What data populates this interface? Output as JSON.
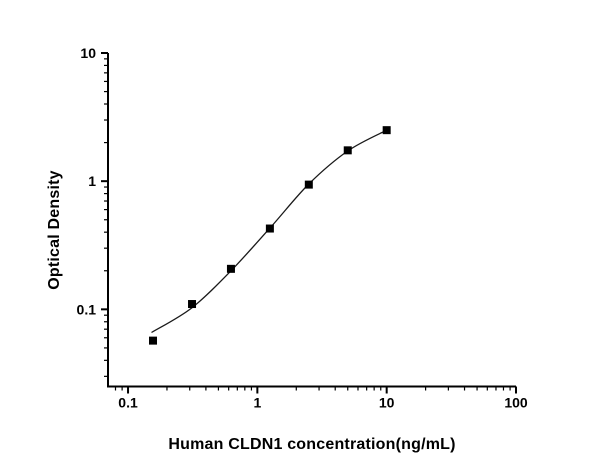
{
  "figure": {
    "background_color": "#ffffff"
  },
  "chart_data": {
    "type": "scatter",
    "title": "",
    "xlabel": "Human CLDN1 concentration(ng/mL)",
    "ylabel": "Optical Density",
    "x_scale": "log",
    "y_scale": "log",
    "xlim": [
      0.07,
      100
    ],
    "ylim": [
      0.025,
      10
    ],
    "x_major_ticks": [
      0.1,
      1,
      10,
      100
    ],
    "x_tick_labels": [
      "0.1",
      "1",
      "10",
      "100"
    ],
    "y_major_ticks": [
      0.1,
      1,
      10
    ],
    "y_tick_labels": [
      "0.1",
      "1",
      "10"
    ],
    "grid": false,
    "legend": false,
    "series": [
      {
        "name": "standard-points",
        "kind": "scatter",
        "marker": "filled-square",
        "color": "#000000",
        "x": [
          0.156,
          0.3125,
          0.625,
          1.25,
          2.5,
          5,
          10
        ],
        "y": [
          0.057,
          0.11,
          0.207,
          0.427,
          0.94,
          1.74,
          2.5
        ]
      },
      {
        "name": "4pl-fit-curve",
        "kind": "line",
        "color": "#1a1a1a",
        "x": [
          0.152,
          0.3125,
          0.625,
          1.25,
          2.5,
          5,
          10
        ],
        "y": [
          0.066,
          0.103,
          0.2,
          0.43,
          0.95,
          1.72,
          2.5
        ]
      }
    ],
    "colors": {
      "axis": "#000000",
      "tick_text": "#000000",
      "marker": "#000000",
      "curve": "#1a1a1a"
    }
  }
}
